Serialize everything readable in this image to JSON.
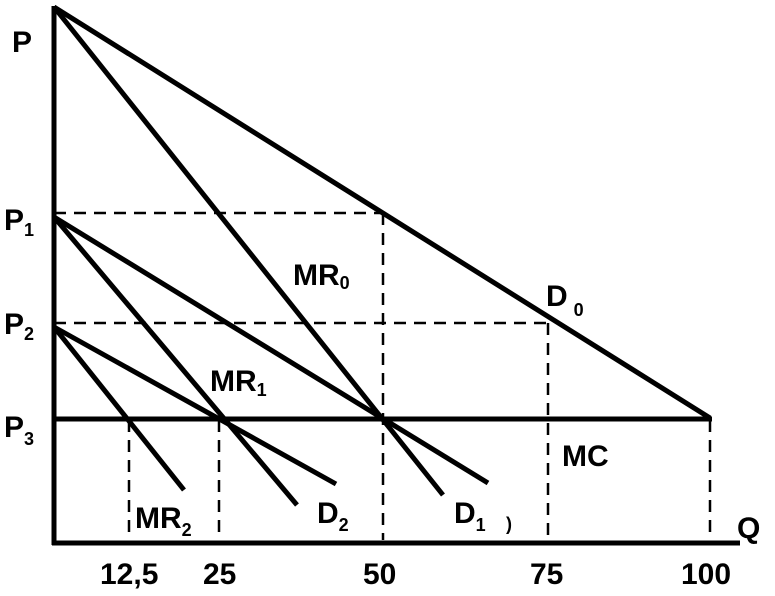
{
  "axes": {
    "y_label": "P",
    "x_label": "Q"
  },
  "y_ticks": [
    {
      "main": "P",
      "sub": "1"
    },
    {
      "main": "P",
      "sub": "2"
    },
    {
      "main": "P",
      "sub": "3"
    }
  ],
  "x_ticks": [
    "12,5",
    "25",
    "50",
    "75",
    "100"
  ],
  "curve_labels": {
    "D0": {
      "main": "D",
      "sub": "0"
    },
    "D1": {
      "main": "D",
      "sub": "1"
    },
    "D1_stray": ")",
    "D2": {
      "main": "D",
      "sub": "2"
    },
    "MR0": {
      "main": "MR",
      "sub": "0"
    },
    "MR1": {
      "main": "MR",
      "sub": "1"
    },
    "MR2": {
      "main": "MR",
      "sub": "2"
    },
    "MC": "MC"
  }
}
